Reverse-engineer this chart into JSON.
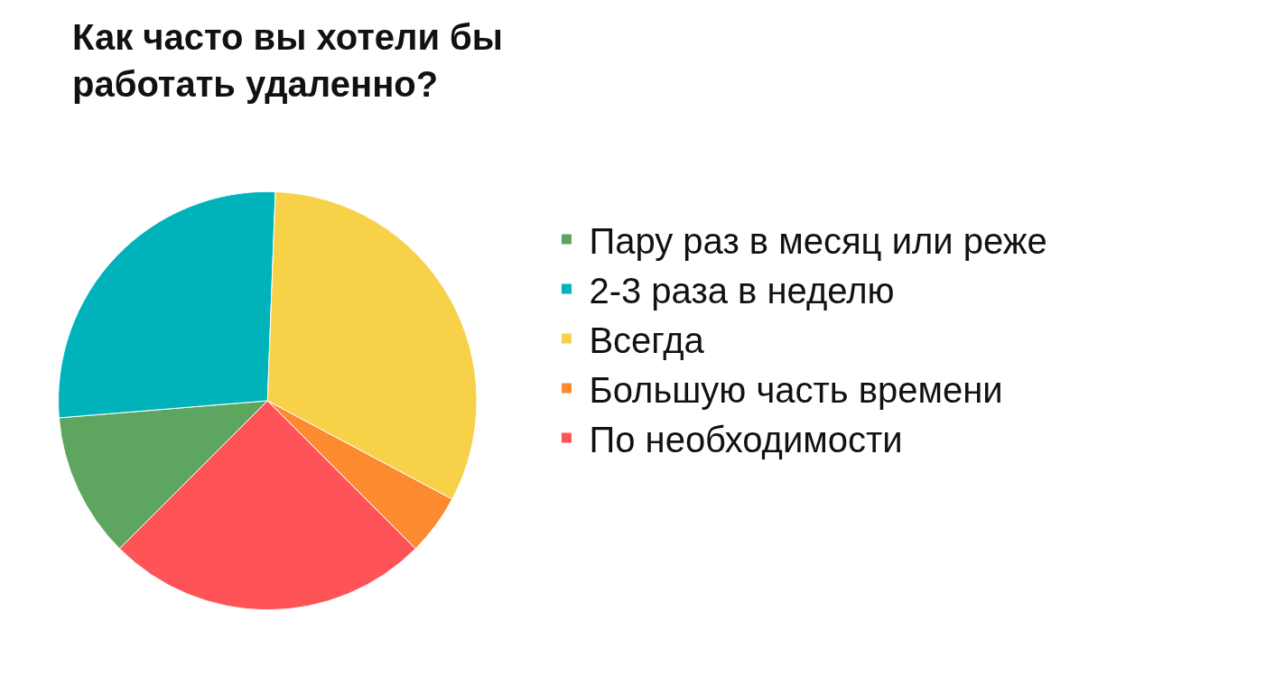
{
  "chart_data": {
    "type": "pie",
    "title": "Как часто вы хотели бы\nработать удаленно?",
    "categories": [
      "Пару раз в месяц или реже",
      "2-3 раза в неделю",
      "Всегда",
      "Большую часть времени",
      "По необходимости"
    ],
    "values": [
      11.2,
      26.9,
      32.2,
      4.7,
      25.0
    ],
    "colors": [
      "#5ea55f",
      "#00b3bb",
      "#f7d147",
      "#fd8a2e",
      "#fe5357"
    ],
    "legend": "right"
  }
}
